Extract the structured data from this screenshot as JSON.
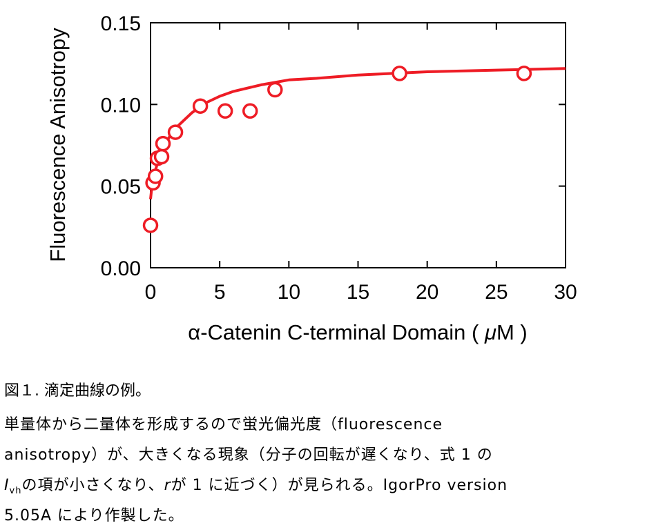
{
  "chart_data": {
    "type": "scatter",
    "xlabel_prefix": "α-Catenin C-terminal Domain ( ",
    "xlabel_unit": "μ",
    "xlabel_suffix": "M )",
    "ylabel": "Fluorescence Anisotropy",
    "xlim": [
      0,
      30
    ],
    "ylim": [
      0.0,
      0.15
    ],
    "x_ticks": [
      0,
      5,
      10,
      15,
      20,
      25,
      30
    ],
    "x_tick_labels": [
      "0",
      "5",
      "10",
      "15",
      "20",
      "25",
      "30"
    ],
    "y_ticks": [
      0.0,
      0.05,
      0.1,
      0.15
    ],
    "y_tick_labels": [
      "0.00",
      "0.05",
      "0.10",
      "0.15"
    ],
    "marker_color": "#ee1c25",
    "fit_color": "#ee1c25",
    "series": [
      {
        "marker": "open-circle",
        "points": [
          {
            "x": 0.0,
            "y": 0.026
          },
          {
            "x": 0.18,
            "y": 0.052
          },
          {
            "x": 0.36,
            "y": 0.056
          },
          {
            "x": 0.5,
            "y": 0.067
          },
          {
            "x": 0.8,
            "y": 0.068
          },
          {
            "x": 0.9,
            "y": 0.076
          },
          {
            "x": 1.8,
            "y": 0.083
          },
          {
            "x": 3.6,
            "y": 0.099
          },
          {
            "x": 5.4,
            "y": 0.096
          },
          {
            "x": 7.2,
            "y": 0.096
          },
          {
            "x": 9.0,
            "y": 0.109
          },
          {
            "x": 18.0,
            "y": 0.119
          },
          {
            "x": 27.0,
            "y": 0.119
          }
        ]
      },
      {
        "line": "fit",
        "points": [
          {
            "x": 0.0,
            "y": 0.042
          },
          {
            "x": 0.1,
            "y": 0.05
          },
          {
            "x": 0.3,
            "y": 0.058
          },
          {
            "x": 0.6,
            "y": 0.067
          },
          {
            "x": 1.0,
            "y": 0.075
          },
          {
            "x": 1.5,
            "y": 0.082
          },
          {
            "x": 2.0,
            "y": 0.087
          },
          {
            "x": 3.0,
            "y": 0.095
          },
          {
            "x": 4.0,
            "y": 0.101
          },
          {
            "x": 5.0,
            "y": 0.105
          },
          {
            "x": 6.0,
            "y": 0.108
          },
          {
            "x": 8.0,
            "y": 0.112
          },
          {
            "x": 10.0,
            "y": 0.115
          },
          {
            "x": 12.0,
            "y": 0.116
          },
          {
            "x": 15.0,
            "y": 0.118
          },
          {
            "x": 20.0,
            "y": 0.12
          },
          {
            "x": 25.0,
            "y": 0.121
          },
          {
            "x": 30.0,
            "y": 0.122
          }
        ]
      }
    ]
  },
  "caption": {
    "title": "図１. 滴定曲線の例。",
    "line1": "単量体から二量体を形成するので蛍光偏光度（fluorescence",
    "line2": "anisotropy）が、大きくなる現象（分子の回転が遅くなり、式 1 の",
    "line3_i": "I",
    "line3_sub": "vh",
    "line3_a": "の項が小さくなり、",
    "line3_r": "r",
    "line3_b": "が 1 に近づく）が見られる。IgorPro version",
    "line4": "5.05A により作製した。"
  }
}
